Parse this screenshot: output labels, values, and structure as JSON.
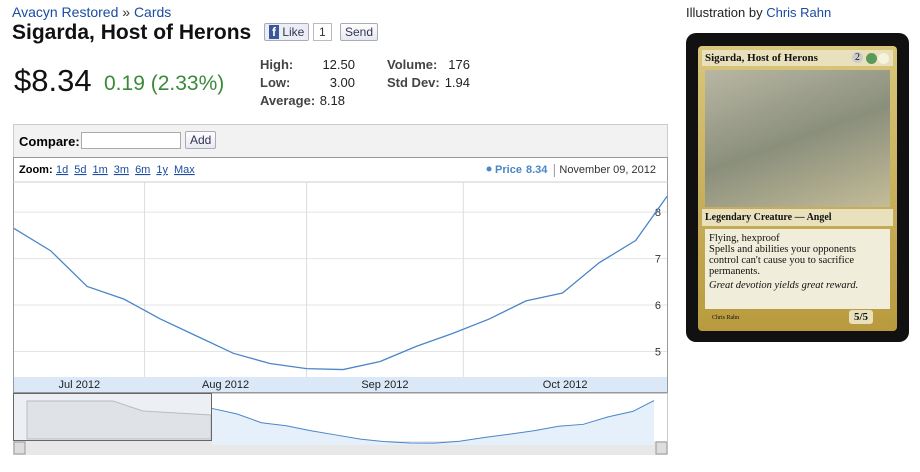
{
  "breadcrumb": {
    "set": "Avacyn Restored",
    "separator": "»",
    "section": "Cards"
  },
  "title": "Sigarda, Host of Herons",
  "social": {
    "like": "Like",
    "like_count": "1",
    "send": "Send"
  },
  "price": "$8.34",
  "change": "0.19 (2.33%)",
  "stats": [
    [
      "High:",
      "12.50"
    ],
    [
      "Low:",
      "3.00"
    ],
    [
      "Average:",
      "8.18"
    ],
    [
      "Volume:",
      "176"
    ],
    [
      "Std Dev:",
      "1.94"
    ]
  ],
  "compare": {
    "label": "Compare:",
    "button": "Add"
  },
  "zoom": {
    "label": "Zoom:",
    "options": [
      "1d",
      "5d",
      "1m",
      "3m",
      "6m",
      "1y",
      "Max"
    ]
  },
  "illustration": {
    "label": "Illustration by",
    "artist": "Chris Rahn"
  },
  "card": {
    "name": "Sigarda, Host of Herons",
    "cost": "2",
    "type": "Legendary Creature — Angel",
    "rules": [
      "Flying, hexproof",
      "Spells and abilities your opponents control can't cause you to sacrifice permanents."
    ],
    "flavor": "Great devotion yields great reward.",
    "pt": "5/5",
    "artist": "Chris Rahn"
  },
  "chart_data": {
    "type": "line",
    "date_label": "November 09, 2012",
    "x": [
      "2012-07-07",
      "2012-07-14",
      "2012-07-21",
      "2012-07-28",
      "2012-08-04",
      "2012-08-11",
      "2012-08-18",
      "2012-08-25",
      "2012-09-01",
      "2012-09-08",
      "2012-09-15",
      "2012-09-22",
      "2012-09-29",
      "2012-10-06",
      "2012-10-13",
      "2012-10-20",
      "2012-10-27",
      "2012-11-03",
      "2012-11-09"
    ],
    "series": [
      {
        "name": "Price",
        "color": "#4a86c8",
        "values": [
          7.65,
          7.17,
          6.4,
          6.13,
          5.7,
          5.33,
          4.96,
          4.74,
          4.63,
          4.61,
          4.78,
          5.11,
          5.39,
          5.7,
          6.09,
          6.26,
          6.91,
          7.39,
          8.34
        ]
      }
    ],
    "xlim": [
      "2012-07-07",
      "2012-11-09"
    ],
    "xticks": [
      {
        "value": "2012-07-01",
        "label": "Jul 2012"
      },
      {
        "value": "2012-08-01",
        "label": "Aug 2012"
      },
      {
        "value": "2012-09-01",
        "label": "Sep 2012"
      },
      {
        "value": "2012-10-01",
        "label": "Oct 2012"
      }
    ],
    "ylim": [
      4.45,
      8.65
    ],
    "yticks": [
      5,
      6,
      7,
      8
    ],
    "grid": true
  }
}
